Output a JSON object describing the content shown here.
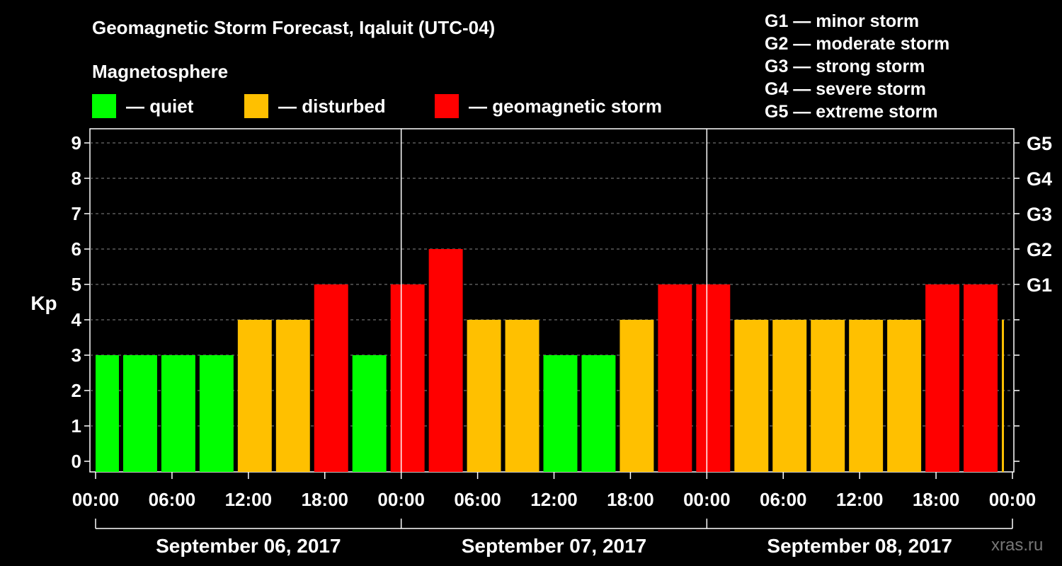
{
  "header": {
    "title": "Geomagnetic Storm Forecast, Iqaluit (UTC-04)",
    "subtitle": "Magnetosphere"
  },
  "legend": [
    {
      "label": "— quiet",
      "color": "#00ff00"
    },
    {
      "label": "— disturbed",
      "color": "#ffc000"
    },
    {
      "label": "— geomagnetic storm",
      "color": "#ff0000"
    }
  ],
  "storm_scale": [
    "G1 — minor storm",
    "G2 — moderate storm",
    "G3 — strong storm",
    "G4 — severe storm",
    "G5 — extreme storm"
  ],
  "watermark": "xras.ru",
  "chart_data": {
    "type": "bar",
    "ylabel": "Kp",
    "ylim": [
      0,
      9
    ],
    "y_ticks": [
      "0",
      "1",
      "2",
      "3",
      "4",
      "5",
      "6",
      "7",
      "8",
      "9"
    ],
    "right_axis_labels": [
      {
        "kp": 5,
        "label": "G1"
      },
      {
        "kp": 6,
        "label": "G2"
      },
      {
        "kp": 7,
        "label": "G3"
      },
      {
        "kp": 8,
        "label": "G4"
      },
      {
        "kp": 9,
        "label": "G5"
      }
    ],
    "x_ticks": [
      "00:00",
      "06:00",
      "12:00",
      "18:00",
      "00:00",
      "06:00",
      "12:00",
      "18:00",
      "00:00",
      "06:00",
      "12:00",
      "18:00",
      "00:00"
    ],
    "days": [
      "September 06, 2017",
      "September 07, 2017",
      "September 08, 2017"
    ],
    "grid": "dashed horizontal",
    "bar_interval_hours": 3,
    "start_offset_hours": -1,
    "values": [
      3,
      3,
      3,
      3,
      4,
      4,
      5,
      3,
      5,
      6,
      4,
      4,
      3,
      3,
      4,
      5,
      5,
      4,
      4,
      4,
      4,
      4,
      5,
      5,
      4
    ],
    "level_colors": {
      "quiet": "#00ff00",
      "disturbed": "#ffc000",
      "storm": "#ff0000"
    }
  }
}
